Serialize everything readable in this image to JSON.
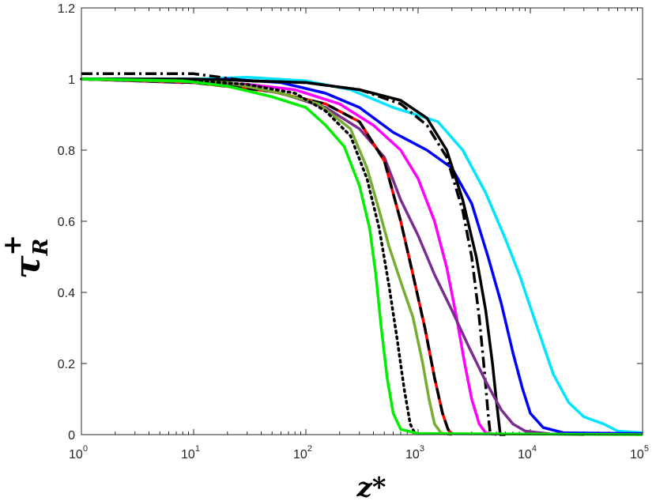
{
  "chart_data": {
    "type": "line",
    "xscale": "log",
    "xlim": [
      1,
      100000
    ],
    "ylim": [
      0,
      1.2
    ],
    "grid": false,
    "legend": "none",
    "xlabel": "z*",
    "ylabel_main": "τ",
    "ylabel_sup": "+",
    "ylabel_sub": "R",
    "xticks": [
      1,
      10,
      100,
      1000,
      10000,
      100000
    ],
    "xtick_labels": [
      {
        "base": "10",
        "exp": "0"
      },
      {
        "base": "10",
        "exp": "1"
      },
      {
        "base": "10",
        "exp": "2"
      },
      {
        "base": "10",
        "exp": "3"
      },
      {
        "base": "10",
        "exp": "4"
      },
      {
        "base": "10",
        "exp": "5"
      }
    ],
    "yticks": [
      0,
      0.2,
      0.4,
      0.6,
      0.8,
      1,
      1.2
    ],
    "ytick_labels": [
      "0",
      "0.2",
      "0.4",
      "0.6",
      "0.8",
      "1",
      "1.2"
    ],
    "series": [
      {
        "color": "#00e5ff",
        "style": "solid",
        "points": [
          [
            1,
            1.0
          ],
          [
            10,
            1.0
          ],
          [
            30,
            1.005
          ],
          [
            100,
            0.995
          ],
          [
            250,
            0.97
          ],
          [
            600,
            0.92
          ],
          [
            1500,
            0.88
          ],
          [
            2500,
            0.8
          ],
          [
            4000,
            0.68
          ],
          [
            6000,
            0.55
          ],
          [
            8000,
            0.45
          ],
          [
            11000,
            0.32
          ],
          [
            16000,
            0.17
          ],
          [
            22000,
            0.09
          ],
          [
            30000,
            0.05
          ],
          [
            45000,
            0.03
          ],
          [
            60000,
            0.01
          ],
          [
            100000,
            0.005
          ]
        ]
      },
      {
        "color": "#0000ff",
        "style": "solid",
        "points": [
          [
            1,
            1.0
          ],
          [
            8,
            0.99
          ],
          [
            20,
            1.0
          ],
          [
            60,
            0.99
          ],
          [
            150,
            0.96
          ],
          [
            300,
            0.92
          ],
          [
            600,
            0.85
          ],
          [
            1200,
            0.8
          ],
          [
            2000,
            0.75
          ],
          [
            3000,
            0.65
          ],
          [
            4200,
            0.5
          ],
          [
            5500,
            0.37
          ],
          [
            7000,
            0.23
          ],
          [
            8500,
            0.13
          ],
          [
            10000,
            0.06
          ],
          [
            13000,
            0.02
          ],
          [
            20000,
            0.005
          ],
          [
            100000,
            0.003
          ]
        ]
      },
      {
        "color": "#000000",
        "style": "solid",
        "points": [
          [
            1,
            1.0
          ],
          [
            10,
            1.0
          ],
          [
            100,
            0.99
          ],
          [
            300,
            0.97
          ],
          [
            700,
            0.94
          ],
          [
            1200,
            0.89
          ],
          [
            1800,
            0.8
          ],
          [
            2500,
            0.66
          ],
          [
            3300,
            0.5
          ],
          [
            4000,
            0.35
          ],
          [
            4600,
            0.2
          ],
          [
            5000,
            0.09
          ],
          [
            5400,
            0.0
          ],
          [
            6000,
            0.0
          ]
        ]
      },
      {
        "color": "#000000",
        "style": "dashdot",
        "points": [
          [
            1,
            1.015
          ],
          [
            10,
            1.015
          ],
          [
            30,
            0.995
          ],
          [
            100,
            0.99
          ],
          [
            300,
            0.97
          ],
          [
            700,
            0.93
          ],
          [
            1200,
            0.87
          ],
          [
            1800,
            0.78
          ],
          [
            2500,
            0.63
          ],
          [
            3000,
            0.5
          ],
          [
            3500,
            0.33
          ],
          [
            3900,
            0.18
          ],
          [
            4200,
            0.06
          ],
          [
            4400,
            0.0
          ]
        ]
      },
      {
        "color": "#ff00ff",
        "style": "solid",
        "points": [
          [
            1,
            1.0
          ],
          [
            10,
            0.99
          ],
          [
            30,
            0.985
          ],
          [
            80,
            0.97
          ],
          [
            200,
            0.93
          ],
          [
            400,
            0.87
          ],
          [
            700,
            0.8
          ],
          [
            1000,
            0.72
          ],
          [
            1400,
            0.6
          ],
          [
            1800,
            0.47
          ],
          [
            2200,
            0.33
          ],
          [
            2600,
            0.2
          ],
          [
            3000,
            0.1
          ],
          [
            3500,
            0.03
          ],
          [
            4000,
            0.005
          ],
          [
            5000,
            0.0
          ]
        ]
      },
      {
        "color": "#7b2c8f",
        "style": "solid",
        "points": [
          [
            1,
            1.0
          ],
          [
            10,
            0.99
          ],
          [
            20,
            0.985
          ],
          [
            60,
            0.96
          ],
          [
            150,
            0.92
          ],
          [
            300,
            0.86
          ],
          [
            500,
            0.78
          ],
          [
            700,
            0.66
          ],
          [
            1000,
            0.56
          ],
          [
            1400,
            0.45
          ],
          [
            2000,
            0.35
          ],
          [
            2800,
            0.25
          ],
          [
            4000,
            0.15
          ],
          [
            5500,
            0.07
          ],
          [
            7000,
            0.03
          ],
          [
            9000,
            0.01
          ],
          [
            15000,
            0.002
          ],
          [
            30000,
            0.0
          ]
        ]
      },
      {
        "color": "#ff0000",
        "style": "solid",
        "points": [
          [
            1,
            1.0
          ],
          [
            10,
            0.99
          ],
          [
            50,
            0.965
          ],
          [
            150,
            0.93
          ],
          [
            300,
            0.88
          ],
          [
            500,
            0.77
          ],
          [
            700,
            0.6
          ],
          [
            900,
            0.45
          ],
          [
            1150,
            0.3
          ],
          [
            1400,
            0.16
          ],
          [
            1650,
            0.06
          ],
          [
            1850,
            0.015
          ],
          [
            2000,
            0.0
          ]
        ]
      },
      {
        "color": "#000000",
        "style": "dashed",
        "points": [
          [
            1,
            1.0
          ],
          [
            10,
            0.99
          ],
          [
            50,
            0.965
          ],
          [
            150,
            0.93
          ],
          [
            300,
            0.88
          ],
          [
            500,
            0.77
          ],
          [
            700,
            0.6
          ],
          [
            900,
            0.45
          ],
          [
            1150,
            0.3
          ],
          [
            1400,
            0.16
          ],
          [
            1650,
            0.06
          ],
          [
            1850,
            0.015
          ],
          [
            2000,
            0.0
          ]
        ]
      },
      {
        "color": "#77ac30",
        "style": "solid",
        "points": [
          [
            1,
            1.0
          ],
          [
            20,
            0.99
          ],
          [
            60,
            0.96
          ],
          [
            130,
            0.93
          ],
          [
            250,
            0.86
          ],
          [
            350,
            0.75
          ],
          [
            450,
            0.63
          ],
          [
            550,
            0.53
          ],
          [
            700,
            0.43
          ],
          [
            900,
            0.33
          ],
          [
            1100,
            0.2
          ],
          [
            1250,
            0.1
          ],
          [
            1400,
            0.03
          ],
          [
            1600,
            0.005
          ],
          [
            2000,
            0.0
          ]
        ]
      },
      {
        "color": "#000000",
        "style": "dotted",
        "points": [
          [
            1,
            1.0
          ],
          [
            10,
            0.995
          ],
          [
            30,
            0.985
          ],
          [
            80,
            0.96
          ],
          [
            150,
            0.91
          ],
          [
            250,
            0.84
          ],
          [
            350,
            0.72
          ],
          [
            450,
            0.58
          ],
          [
            550,
            0.42
          ],
          [
            650,
            0.27
          ],
          [
            750,
            0.13
          ],
          [
            850,
            0.03
          ],
          [
            950,
            0.0
          ]
        ]
      },
      {
        "color": "#00ee00",
        "style": "solid",
        "points": [
          [
            1,
            1.0
          ],
          [
            8,
            0.995
          ],
          [
            20,
            0.98
          ],
          [
            50,
            0.95
          ],
          [
            100,
            0.92
          ],
          [
            150,
            0.87
          ],
          [
            220,
            0.81
          ],
          [
            300,
            0.7
          ],
          [
            370,
            0.58
          ],
          [
            420,
            0.45
          ],
          [
            470,
            0.3
          ],
          [
            530,
            0.16
          ],
          [
            600,
            0.06
          ],
          [
            700,
            0.015
          ],
          [
            1000,
            0.003
          ],
          [
            100000,
            0.0
          ]
        ]
      }
    ]
  }
}
